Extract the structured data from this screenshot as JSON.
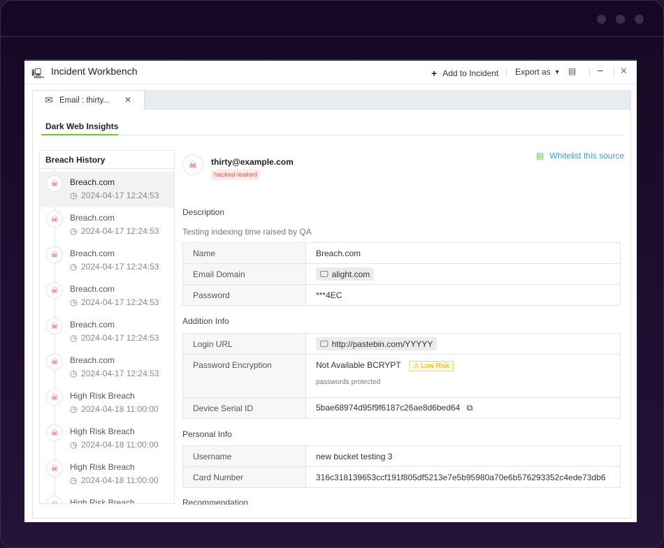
{
  "window": {
    "title": "Incident Workbench",
    "add_to_incident": "Add to Incident",
    "export_as": "Export as"
  },
  "tab": {
    "label": "Email : thirty..."
  },
  "subtab": {
    "label": "Dark Web Insights"
  },
  "breach_history": {
    "title": "Breach History",
    "items": [
      {
        "name": "Breach.com",
        "time": "2024-04-17 12:24:53"
      },
      {
        "name": "Breach.com",
        "time": "2024-04-17 12:24:53"
      },
      {
        "name": "Breach.com",
        "time": "2024-04-17 12:24:53"
      },
      {
        "name": "Breach.com",
        "time": "2024-04-17 12:24:53"
      },
      {
        "name": "Breach.com",
        "time": "2024-04-17 12:24:53"
      },
      {
        "name": "Breach.com",
        "time": "2024-04-17 12:24:53"
      },
      {
        "name": "High Risk Breach",
        "time": "2024-04-18 11:00:00"
      },
      {
        "name": "High Risk Breach",
        "time": "2024-04-18 11:00:00"
      },
      {
        "name": "High Risk Breach",
        "time": "2024-04-18 11:00:00"
      },
      {
        "name": "High Risk Breach",
        "time": ""
      }
    ]
  },
  "detail": {
    "whitelist": "Whitelist this source",
    "email": "thirty@example.com",
    "badge": "hacked-leaked",
    "description_title": "Description",
    "description": "Testing indexing time raised by QA",
    "table1": [
      {
        "label": "Name",
        "value": "Breach.com"
      },
      {
        "label": "Email Domain",
        "value": "alight.com"
      },
      {
        "label": "Password",
        "value": "***4EC"
      }
    ],
    "addition_title": "Addition Info",
    "login_url_label": "Login URL",
    "login_url": "http://pastebin.com/YYYYY",
    "enc_label": "Password Encryption",
    "enc_value": "Not Available BCRYPT",
    "risk": "Low Risk",
    "enc_note": "passwords protected",
    "serial_label": "Device Serial ID",
    "serial": "5bae68974d95f9f6187c26ae8d6bed64",
    "personal_title": "Personal Info",
    "table3": [
      {
        "label": "Username",
        "value": "new bucket testing 3"
      },
      {
        "label": "Card Number",
        "value": "316c318139653ccf191f805df5213e7e5b95980a70e6b576293352c4ede73db6"
      }
    ],
    "recommendation_title": "Recommendation"
  },
  "colors": {
    "accent": "#6cbf3f",
    "link": "#3a9bd5",
    "danger": "#d93a3a",
    "warning": "#f5c518"
  }
}
